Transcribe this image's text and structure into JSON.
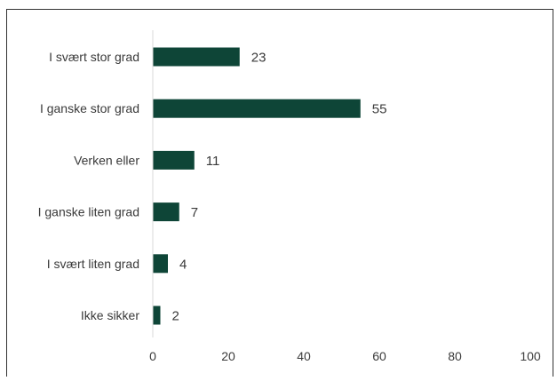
{
  "chart_data": {
    "type": "bar",
    "orientation": "horizontal",
    "categories": [
      "I svært stor grad",
      "I ganske stor grad",
      "Verken eller",
      "I ganske liten grad",
      "I svært liten grad",
      "Ikke sikker"
    ],
    "values": [
      23,
      55,
      11,
      7,
      4,
      2
    ],
    "xlim": [
      0,
      100
    ],
    "xticks": [
      "0",
      "20",
      "40",
      "60",
      "80",
      "100"
    ],
    "grid": false,
    "legend": "none",
    "title": "",
    "xlabel": "",
    "ylabel": ""
  },
  "colors": {
    "bar": "#0e4537",
    "text": "#3a3a3a",
    "axis": "#d9d9d9",
    "frame": "#333333",
    "background": "#ffffff"
  }
}
